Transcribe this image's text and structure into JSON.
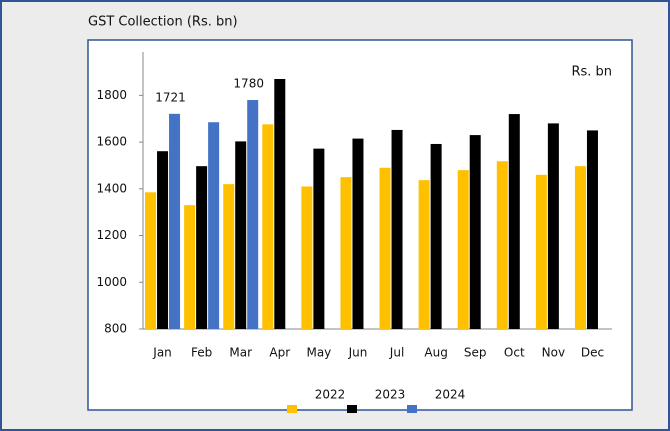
{
  "chart_data": {
    "type": "bar",
    "title": "GST Collection (Rs. bn)",
    "unit_label": "Rs. bn",
    "categories": [
      "Jan",
      "Feb",
      "Mar",
      "Apr",
      "May",
      "Jun",
      "Jul",
      "Aug",
      "Sep",
      "Oct",
      "Nov",
      "Dec"
    ],
    "series": [
      {
        "name": "2022",
        "color": "#ffc000",
        "values": [
          1385,
          1330,
          1420,
          1676,
          1410,
          1450,
          1490,
          1437,
          1480,
          1518,
          1460,
          1497
        ]
      },
      {
        "name": "2023",
        "color": "#000000",
        "values": [
          1561,
          1497,
          1603,
          1870,
          1572,
          1615,
          1652,
          1592,
          1630,
          1720,
          1680,
          1650
        ]
      },
      {
        "name": "2024",
        "color": "#4472c4",
        "values": [
          1721,
          1685,
          1780,
          null,
          null,
          null,
          null,
          null,
          null,
          null,
          null,
          null
        ],
        "value_labels": [
          "1721",
          null,
          "1780",
          null,
          null,
          null,
          null,
          null,
          null,
          null,
          null,
          null
        ]
      }
    ],
    "ylim": [
      800,
      1900
    ],
    "yticks": [
      800,
      1000,
      1200,
      1400,
      1600,
      1800
    ],
    "grid": false
  }
}
